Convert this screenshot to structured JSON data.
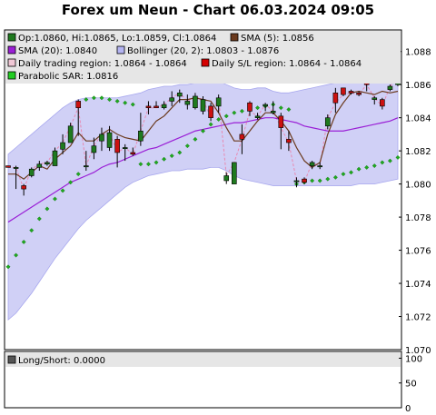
{
  "chart_data": {
    "type": "candlestick",
    "title": "Forex um Neun - Chart 06.03.2024 09:05",
    "price_axis": {
      "ylim": [
        1.07,
        1.0893
      ],
      "ticks": [
        "1.088",
        "1.086",
        "1.084",
        "1.082",
        "1.080",
        "1.078",
        "1.076",
        "1.074",
        "1.072",
        "1.070"
      ]
    },
    "legend": [
      {
        "label": "Op:1.0860, Hi:1.0865, Lo:1.0859, Cl:1.0864",
        "color": "#1f7a1f"
      },
      {
        "label": "SMA (5): 1.0856",
        "color": "#6b3a1e"
      },
      {
        "label": "SMA (20): 1.0840",
        "color": "#9a1fd6"
      },
      {
        "label": "Bollinger (20, 2): 1.0803 - 1.0876",
        "color": "#b4b4f2"
      },
      {
        "label": "Daily trading region: 1.0864 - 1.0864",
        "color": "#f0c8d6"
      },
      {
        "label": "Daily S/L region: 1.0864 - 1.0864",
        "color": "#d40000"
      },
      {
        "label": "Parabolic SAR: 1.0816",
        "color": "#22cc22"
      }
    ],
    "candles": [
      {
        "o": 1.0811,
        "h": 1.0811,
        "l": 1.081,
        "c": 1.081
      },
      {
        "o": 1.081,
        "h": 1.0811,
        "l": 1.0797,
        "c": 1.081
      },
      {
        "o": 1.0799,
        "h": 1.08,
        "l": 1.0793,
        "c": 1.0797
      },
      {
        "o": 1.0805,
        "h": 1.081,
        "l": 1.0804,
        "c": 1.0809
      },
      {
        "o": 1.081,
        "h": 1.0814,
        "l": 1.0808,
        "c": 1.0812
      },
      {
        "o": 1.0812,
        "h": 1.0814,
        "l": 1.0811,
        "c": 1.0813
      },
      {
        "o": 1.0811,
        "h": 1.0822,
        "l": 1.0811,
        "c": 1.082
      },
      {
        "o": 1.0821,
        "h": 1.083,
        "l": 1.0818,
        "c": 1.0825
      },
      {
        "o": 1.0825,
        "h": 1.0837,
        "l": 1.0825,
        "c": 1.0835
      },
      {
        "o": 1.085,
        "h": 1.0851,
        "l": 1.0829,
        "c": 1.0846
      },
      {
        "o": 1.0811,
        "h": 1.082,
        "l": 1.0808,
        "c": 1.0811
      },
      {
        "o": 1.0819,
        "h": 1.0828,
        "l": 1.0815,
        "c": 1.0823
      },
      {
        "o": 1.0826,
        "h": 1.0834,
        "l": 1.082,
        "c": 1.083
      },
      {
        "o": 1.0822,
        "h": 1.0835,
        "l": 1.082,
        "c": 1.0831
      },
      {
        "o": 1.0827,
        "h": 1.0829,
        "l": 1.081,
        "c": 1.0819
      },
      {
        "o": 1.0822,
        "h": 1.0824,
        "l": 1.0814,
        "c": 1.0822
      },
      {
        "o": 1.0819,
        "h": 1.0822,
        "l": 1.0817,
        "c": 1.0818
      },
      {
        "o": 1.0826,
        "h": 1.0843,
        "l": 1.0823,
        "c": 1.0832
      },
      {
        "o": 1.0847,
        "h": 1.085,
        "l": 1.0842,
        "c": 1.0846
      },
      {
        "o": 1.0847,
        "h": 1.085,
        "l": 1.0846,
        "c": 1.0846
      },
      {
        "o": 1.0846,
        "h": 1.085,
        "l": 1.0845,
        "c": 1.0848
      },
      {
        "o": 1.085,
        "h": 1.0856,
        "l": 1.0847,
        "c": 1.0852
      },
      {
        "o": 1.0853,
        "h": 1.0857,
        "l": 1.0849,
        "c": 1.0855
      },
      {
        "o": 1.0848,
        "h": 1.0854,
        "l": 1.0845,
        "c": 1.085
      },
      {
        "o": 1.0846,
        "h": 1.0855,
        "l": 1.0845,
        "c": 1.0853
      },
      {
        "o": 1.0844,
        "h": 1.0853,
        "l": 1.0842,
        "c": 1.0851
      },
      {
        "o": 1.0847,
        "h": 1.0849,
        "l": 1.0838,
        "c": 1.084
      },
      {
        "o": 1.0847,
        "h": 1.0854,
        "l": 1.0843,
        "c": 1.0852
      },
      {
        "o": 1.0802,
        "h": 1.0807,
        "l": 1.08,
        "c": 1.0805
      },
      {
        "o": 1.08,
        "h": 1.0813,
        "l": 1.08,
        "c": 1.0813
      },
      {
        "o": 1.083,
        "h": 1.0836,
        "l": 1.0818,
        "c": 1.0827
      },
      {
        "o": 1.0849,
        "h": 1.085,
        "l": 1.0841,
        "c": 1.0844
      },
      {
        "o": 1.084,
        "h": 1.0843,
        "l": 1.0839,
        "c": 1.0841
      },
      {
        "o": 1.0847,
        "h": 1.0849,
        "l": 1.0844,
        "c": 1.0848
      },
      {
        "o": 1.0843,
        "h": 1.085,
        "l": 1.0842,
        "c": 1.0844
      },
      {
        "o": 1.0841,
        "h": 1.0843,
        "l": 1.0821,
        "c": 1.0834
      },
      {
        "o": 1.0827,
        "h": 1.0832,
        "l": 1.082,
        "c": 1.0825
      },
      {
        "o": 1.0802,
        "h": 1.0804,
        "l": 1.0798,
        "c": 1.0802
      },
      {
        "o": 1.0803,
        "h": 1.0804,
        "l": 1.08,
        "c": 1.0801
      },
      {
        "o": 1.0811,
        "h": 1.0814,
        "l": 1.0809,
        "c": 1.0813
      },
      {
        "o": 1.0811,
        "h": 1.0813,
        "l": 1.0809,
        "c": 1.0811
      },
      {
        "o": 1.0835,
        "h": 1.0842,
        "l": 1.0833,
        "c": 1.084
      },
      {
        "o": 1.0855,
        "h": 1.0858,
        "l": 1.0843,
        "c": 1.0849
      },
      {
        "o": 1.0858,
        "h": 1.0858,
        "l": 1.0853,
        "c": 1.0854
      },
      {
        "o": 1.0856,
        "h": 1.0857,
        "l": 1.0854,
        "c": 1.0855
      },
      {
        "o": 1.0855,
        "h": 1.0856,
        "l": 1.0853,
        "c": 1.0854
      },
      {
        "o": 1.0869,
        "h": 1.087,
        "l": 1.0856,
        "c": 1.086
      },
      {
        "o": 1.0851,
        "h": 1.0853,
        "l": 1.0848,
        "c": 1.0852
      },
      {
        "o": 1.0851,
        "h": 1.0852,
        "l": 1.0845,
        "c": 1.0847
      },
      {
        "o": 1.0857,
        "h": 1.086,
        "l": 1.0856,
        "c": 1.0859
      },
      {
        "o": 1.086,
        "h": 1.0865,
        "l": 1.0859,
        "c": 1.0864
      }
    ],
    "sma5": [
      1.0806,
      1.0806,
      1.0803,
      1.0807,
      1.0811,
      1.0809,
      1.0815,
      1.0819,
      1.0823,
      1.0831,
      1.0826,
      1.0826,
      1.083,
      1.0833,
      1.083,
      1.0828,
      1.0827,
      1.0826,
      1.0832,
      1.0838,
      1.0841,
      1.0846,
      1.0851,
      1.0851,
      1.0852,
      1.0851,
      1.085,
      1.0843,
      1.0834,
      1.0826,
      1.0826,
      1.0832,
      1.0838,
      1.0843,
      1.0843,
      1.0838,
      1.0832,
      1.0822,
      1.0814,
      1.081,
      1.0813,
      1.083,
      1.0842,
      1.0849,
      1.0855,
      1.0856,
      1.0855,
      1.0854,
      1.0856,
      1.0855,
      1.0856
    ],
    "sma20": [
      1.0777,
      1.078,
      1.0783,
      1.0786,
      1.0789,
      1.0792,
      1.0795,
      1.0798,
      1.0801,
      1.0803,
      1.0805,
      1.0807,
      1.081,
      1.0812,
      1.0813,
      1.0815,
      1.0817,
      1.0819,
      1.0821,
      1.0822,
      1.0824,
      1.0826,
      1.0828,
      1.083,
      1.0832,
      1.0833,
      1.0834,
      1.0835,
      1.0836,
      1.0837,
      1.0837,
      1.0838,
      1.0839,
      1.084,
      1.084,
      1.0839,
      1.0838,
      1.0837,
      1.0835,
      1.0834,
      1.0833,
      1.0832,
      1.0832,
      1.0832,
      1.0833,
      1.0834,
      1.0835,
      1.0836,
      1.0837,
      1.0838,
      1.084
    ],
    "bb_upper": [
      1.0818,
      1.0822,
      1.0826,
      1.083,
      1.0834,
      1.0838,
      1.0842,
      1.0846,
      1.0849,
      1.0851,
      1.0852,
      1.0852,
      1.0852,
      1.0852,
      1.0852,
      1.0853,
      1.0854,
      1.0855,
      1.0857,
      1.0858,
      1.0859,
      1.0859,
      1.086,
      1.086,
      1.0861,
      1.0862,
      1.0862,
      1.0862,
      1.086,
      1.0858,
      1.0857,
      1.0857,
      1.0858,
      1.0858,
      1.0856,
      1.0855,
      1.0855,
      1.0856,
      1.0857,
      1.0858,
      1.0859,
      1.086,
      1.0861,
      1.0863,
      1.0865,
      1.0866,
      1.0868,
      1.087,
      1.0872,
      1.0874,
      1.0876
    ],
    "bb_lower": [
      1.0718,
      1.0722,
      1.0728,
      1.0734,
      1.0741,
      1.0748,
      1.0755,
      1.0761,
      1.0767,
      1.0773,
      1.0778,
      1.0782,
      1.0786,
      1.079,
      1.0794,
      1.0798,
      1.0801,
      1.0803,
      1.0805,
      1.0806,
      1.0807,
      1.0808,
      1.0808,
      1.0809,
      1.0809,
      1.0809,
      1.081,
      1.081,
      1.0808,
      1.0805,
      1.0803,
      1.0802,
      1.0801,
      1.08,
      1.0799,
      1.0799,
      1.0799,
      1.0799,
      1.0799,
      1.0799,
      1.0799,
      1.0799,
      1.0799,
      1.0799,
      1.0799,
      1.08,
      1.08,
      1.08,
      1.0801,
      1.0802,
      1.0803
    ],
    "sar": [
      1.075,
      1.0757,
      1.0765,
      1.0772,
      1.0779,
      1.0785,
      1.0791,
      1.0796,
      1.0801,
      1.0806,
      1.0851,
      1.0852,
      1.0852,
      1.0851,
      1.085,
      1.0849,
      1.0848,
      1.0812,
      1.0812,
      1.0813,
      1.0815,
      1.0817,
      1.0819,
      1.0823,
      1.0827,
      1.0832,
      1.0836,
      1.0839,
      1.0841,
      1.0843,
      1.0844,
      1.0845,
      1.0846,
      1.0847,
      1.0848,
      1.0846,
      1.0845,
      1.08,
      1.0801,
      1.0802,
      1.0802,
      1.0803,
      1.0804,
      1.0806,
      1.0807,
      1.0809,
      1.081,
      1.0811,
      1.0813,
      1.0814,
      1.0816
    ],
    "lower_panel": {
      "legend": "Long/Short: 0.0000",
      "ylim": [
        0,
        110
      ],
      "ticks": [
        "100",
        "50",
        "0"
      ],
      "values": []
    }
  }
}
